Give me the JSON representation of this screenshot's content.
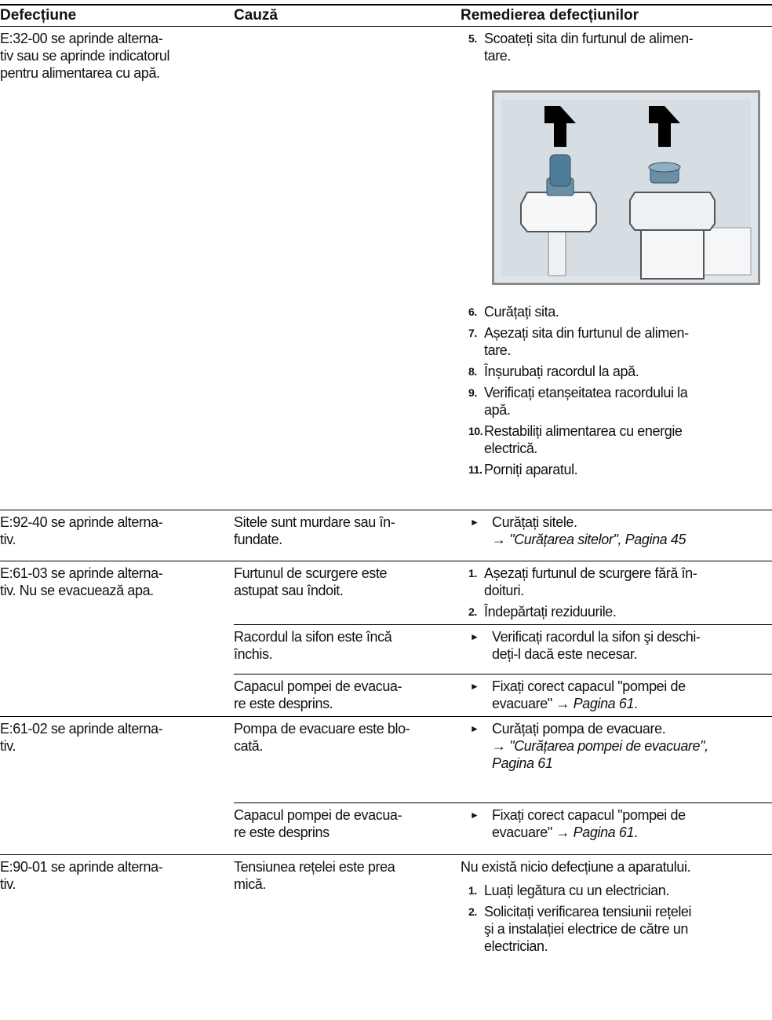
{
  "header": {
    "defect": "Defecțiune",
    "cause": "Cauză",
    "remedy": "Remedierea defecțiunilor"
  },
  "rows": [
    {
      "defect": "E:32-00 se aprinde alterna-\ntiv sau se aprinde indicatorul\npentru alimentarea cu apă.",
      "causes": [
        {
          "remedy": [
            {
              "steps": [
                {
                  "number": "5.",
                  "text": "Scoateți sita din furtunul de alimen-\ntare."
                }
              ]
            },
            {
              "steps": [
                {
                  "number": "6.",
                  "text": "Curățați sita."
                },
                {
                  "number": "7.",
                  "text": "Așezați sita din furtunul de alimen-\ntare."
                },
                {
                  "number": "8.",
                  "text": "Înșurubați racordul la apă."
                },
                {
                  "number": "9.",
                  "text": "Verificați etanșeitatea racordului la\napă."
                },
                {
                  "number": "10.",
                  "text": "Restabiliți alimentarea cu energie\nelectrică."
                },
                {
                  "number": "11.",
                  "text": "Porniți aparatul."
                }
              ]
            }
          ]
        }
      ]
    },
    {
      "defect": "E:92-40 se aprinde alterna-\ntiv.",
      "causes": [
        {
          "cause": "Sitele sunt murdare sau în-\nfundate.",
          "remedy": [
            {
              "steps": [
                {
                  "text": "Curățați sitele.",
                  "link": "\n→ \"Curățarea sitelor\", Pagina 45"
                }
              ]
            }
          ]
        }
      ]
    },
    {
      "defect": "E:61-03 se aprinde alterna-\ntiv. Nu se evacuează apa.",
      "causes": [
        {
          "cause": "Furtunul de scurgere este\nastupat sau îndoit.",
          "remedy": [
            {
              "steps": [
                {
                  "number": "1.",
                  "text": "Așezați furtunul de scurgere fără în-\ndoituri."
                },
                {
                  "number": "2.",
                  "text": "Îndepărtați reziduurile."
                }
              ]
            }
          ]
        },
        {
          "cause": "Racordul la sifon este încă\nînchis.",
          "remedy": [
            {
              "steps": [
                {
                  "text": "Verificați racordul la sifon şi deschi-\ndeți-l dacă este necesar."
                }
              ]
            }
          ]
        },
        {
          "cause": "Capacul pompei de evacua-\nre este desprins.",
          "remedy": [
            {
              "steps": [
                {
                  "text": "Fixați corect capacul \"pompei de\nevacuare\" → ",
                  "link": "Pagina 61",
                  "after": "."
                }
              ]
            }
          ]
        }
      ]
    },
    {
      "defect": "E:61-02 se aprinde alterna-\ntiv.",
      "causes": [
        {
          "cause": "Pompa de evacuare este blo-\ncată.",
          "remedy": [
            {
              "steps": [
                {
                  "text": "Curățați pompa de evacuare.",
                  "link": "\n→ \"Curățarea pompei de evacuare\",\nPagina 61"
                }
              ]
            }
          ]
        },
        {
          "cause": "Capacul pompei de evacua-\nre este desprins",
          "remedy": [
            {
              "steps": [
                {
                  "text": "Fixați corect capacul \"pompei de\nevacuare\" → ",
                  "link": "Pagina 61",
                  "after": "."
                }
              ]
            }
          ]
        }
      ]
    },
    {
      "defect": "E:90-01 se aprinde alterna-\ntiv.",
      "causes": [
        {
          "cause": "Tensiunea rețelei este prea\nmică.",
          "remedy": [
            {
              "note": "Nu există nicio defecțiune a aparatului."
            },
            {
              "steps": [
                {
                  "number": "1.",
                  "text": "Luați legătura cu un electrician."
                },
                {
                  "number": "2.",
                  "text": "Solicitați verificarea tensiunii rețelei\nşi a instalației electrice de către un\nelectrician."
                }
              ]
            }
          ]
        }
      ]
    }
  ]
}
